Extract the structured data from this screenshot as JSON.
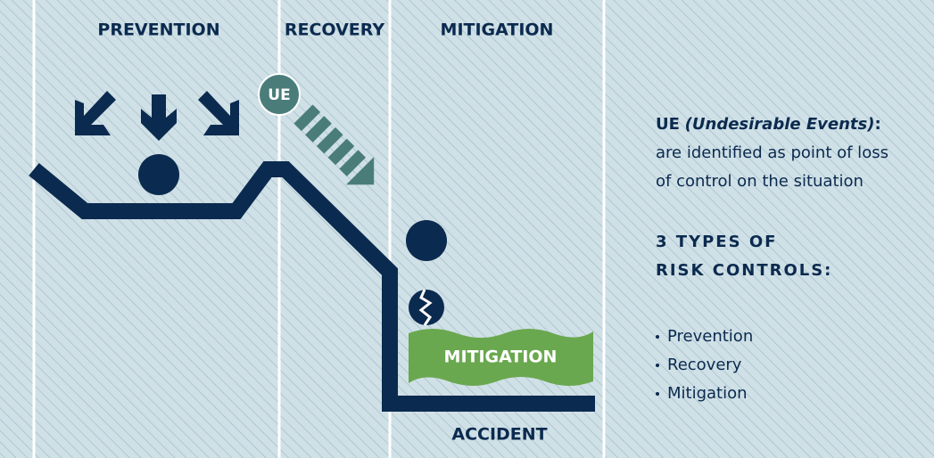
{
  "headers": [
    "PREVENTION",
    "RECOVERY",
    "MITIGATION"
  ],
  "ue_badge": "UE",
  "mitigation_label": "MITIGATION",
  "accident_label": "ACCIDENT",
  "definition": {
    "term": "UE",
    "expansion": "(Undesirable Events)",
    "colon": ":",
    "lines": [
      "are identified as point of loss",
      "of control on the situation"
    ]
  },
  "types_heading": [
    "3 TYPES OF",
    "RISK CONTROLS:"
  ],
  "types": [
    "Prevention",
    "Recovery",
    "Mitigation"
  ]
}
